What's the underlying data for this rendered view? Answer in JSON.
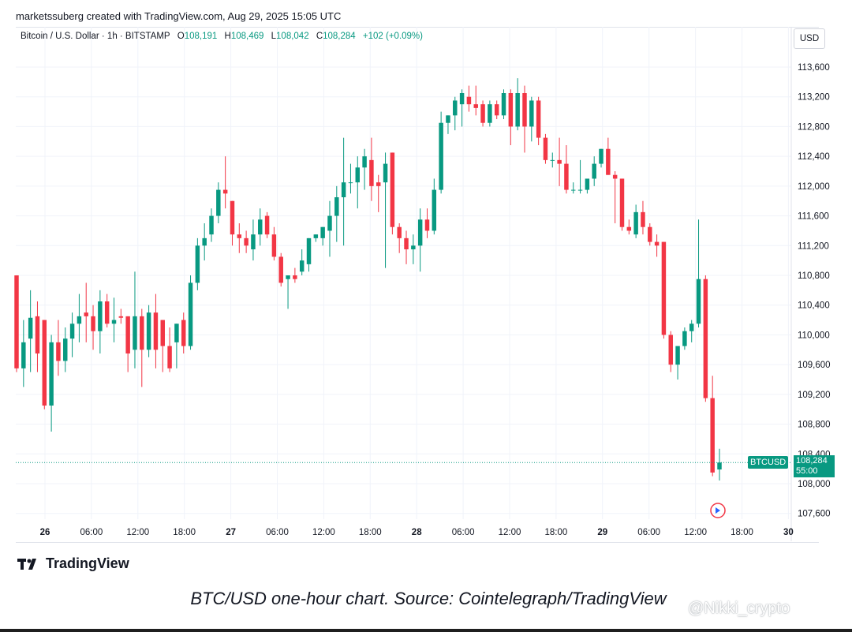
{
  "credit": "marketssuberg created with TradingView.com, Aug 29, 2025 15:05 UTC",
  "legend": {
    "name": "Bitcoin / U.S. Dollar · 1h · BITSTAMP",
    "o_label": "O",
    "o": "108,191",
    "h_label": "H",
    "h": "108,469",
    "l_label": "L",
    "l": "108,042",
    "c_label": "C",
    "c": "108,284",
    "change": "+102 (+0.09%)"
  },
  "currency": "USD",
  "price_tag": {
    "symbol": "BTCUSD",
    "price": "108,284",
    "countdown": "55:00"
  },
  "brand": "TradingView",
  "caption": "BTC/USD one-hour chart. Source: Cointelegraph/TradingView",
  "watermark": "@Nikki_crypto",
  "colors": {
    "up": "#089981",
    "down": "#f23645",
    "grid": "#f0f3fa",
    "text": "#131722"
  },
  "chart_data": {
    "type": "candlestick",
    "title": "Bitcoin / U.S. Dollar · 1h · BITSTAMP",
    "ylim": [
      107400,
      113900
    ],
    "yticks": [
      107600,
      108000,
      108400,
      108800,
      109200,
      109600,
      110000,
      110400,
      110800,
      111200,
      111600,
      112000,
      112400,
      112800,
      113200,
      113600
    ],
    "ytick_labels": [
      "107,600",
      "108,000",
      "108,400",
      "108,800",
      "109,200",
      "109,600",
      "110,000",
      "110,400",
      "110,800",
      "111,200",
      "111,600",
      "112,000",
      "112,400",
      "112,800",
      "113,200",
      "113,600"
    ],
    "xtick_labels": [
      "26",
      "06:00",
      "12:00",
      "18:00",
      "27",
      "06:00",
      "12:00",
      "18:00",
      "28",
      "06:00",
      "12:00",
      "18:00",
      "29",
      "06:00",
      "12:00",
      "18:00",
      "30"
    ],
    "xtick_bold": [
      true,
      false,
      false,
      false,
      true,
      false,
      false,
      false,
      true,
      false,
      false,
      false,
      true,
      false,
      false,
      false,
      true
    ],
    "grid": true,
    "last_price": 108284,
    "candles": [
      {
        "o": 110800,
        "h": 110800,
        "l": 109500,
        "c": 109550
      },
      {
        "o": 109550,
        "h": 110200,
        "l": 109300,
        "c": 109900
      },
      {
        "o": 109950,
        "h": 110600,
        "l": 109500,
        "c": 110230
      },
      {
        "o": 110250,
        "h": 110450,
        "l": 109500,
        "c": 109750
      },
      {
        "o": 110200,
        "h": 110200,
        "l": 109000,
        "c": 109050
      },
      {
        "o": 109050,
        "h": 110000,
        "l": 108700,
        "c": 109900
      },
      {
        "o": 109900,
        "h": 110200,
        "l": 109450,
        "c": 109650
      },
      {
        "o": 109650,
        "h": 110100,
        "l": 109500,
        "c": 109950
      },
      {
        "o": 109950,
        "h": 110300,
        "l": 109700,
        "c": 110150
      },
      {
        "o": 110150,
        "h": 110550,
        "l": 109900,
        "c": 110250
      },
      {
        "o": 110300,
        "h": 110700,
        "l": 109900,
        "c": 110250
      },
      {
        "o": 110250,
        "h": 110400,
        "l": 109800,
        "c": 110050
      },
      {
        "o": 110050,
        "h": 110600,
        "l": 109750,
        "c": 110450
      },
      {
        "o": 110450,
        "h": 110550,
        "l": 110100,
        "c": 110150
      },
      {
        "o": 110150,
        "h": 110500,
        "l": 109900,
        "c": 110200
      },
      {
        "o": 110250,
        "h": 110350,
        "l": 110150,
        "c": 110230
      },
      {
        "o": 110250,
        "h": 110250,
        "l": 109500,
        "c": 109750
      },
      {
        "o": 109800,
        "h": 110850,
        "l": 109550,
        "c": 110250
      },
      {
        "o": 110250,
        "h": 110350,
        "l": 109300,
        "c": 109800
      },
      {
        "o": 109800,
        "h": 110400,
        "l": 109700,
        "c": 110300
      },
      {
        "o": 110300,
        "h": 110550,
        "l": 109550,
        "c": 109800
      },
      {
        "o": 110200,
        "h": 110200,
        "l": 109500,
        "c": 109850
      },
      {
        "o": 109850,
        "h": 110100,
        "l": 109500,
        "c": 109550
      },
      {
        "o": 109900,
        "h": 110150,
        "l": 109550,
        "c": 110150
      },
      {
        "o": 110200,
        "h": 110300,
        "l": 109750,
        "c": 109850
      },
      {
        "o": 109850,
        "h": 110800,
        "l": 109800,
        "c": 110700
      },
      {
        "o": 110700,
        "h": 111300,
        "l": 110600,
        "c": 111200
      },
      {
        "o": 111200,
        "h": 111500,
        "l": 111000,
        "c": 111300
      },
      {
        "o": 111350,
        "h": 111700,
        "l": 111250,
        "c": 111600
      },
      {
        "o": 111600,
        "h": 112050,
        "l": 111500,
        "c": 111950
      },
      {
        "o": 111950,
        "h": 112400,
        "l": 111700,
        "c": 111900
      },
      {
        "o": 111800,
        "h": 111800,
        "l": 111200,
        "c": 111350
      },
      {
        "o": 111350,
        "h": 111500,
        "l": 111100,
        "c": 111300
      },
      {
        "o": 111300,
        "h": 111400,
        "l": 111100,
        "c": 111200
      },
      {
        "o": 111150,
        "h": 111550,
        "l": 111000,
        "c": 111350
      },
      {
        "o": 111350,
        "h": 111700,
        "l": 111200,
        "c": 111550
      },
      {
        "o": 111600,
        "h": 111650,
        "l": 111300,
        "c": 111350
      },
      {
        "o": 111350,
        "h": 111450,
        "l": 111000,
        "c": 111050
      },
      {
        "o": 111050,
        "h": 111100,
        "l": 110650,
        "c": 110700
      },
      {
        "o": 110750,
        "h": 110800,
        "l": 110350,
        "c": 110800
      },
      {
        "o": 110800,
        "h": 110900,
        "l": 110700,
        "c": 110750
      },
      {
        "o": 110850,
        "h": 111150,
        "l": 110800,
        "c": 111000
      },
      {
        "o": 110950,
        "h": 111300,
        "l": 110850,
        "c": 111300
      },
      {
        "o": 111300,
        "h": 111350,
        "l": 111250,
        "c": 111350
      },
      {
        "o": 111300,
        "h": 111450,
        "l": 111200,
        "c": 111450
      },
      {
        "o": 111400,
        "h": 111800,
        "l": 111050,
        "c": 111600
      },
      {
        "o": 111600,
        "h": 112000,
        "l": 111250,
        "c": 111850
      },
      {
        "o": 111850,
        "h": 112650,
        "l": 111200,
        "c": 112050
      },
      {
        "o": 112050,
        "h": 112300,
        "l": 111900,
        "c": 112050
      },
      {
        "o": 112050,
        "h": 112400,
        "l": 111700,
        "c": 112250
      },
      {
        "o": 112250,
        "h": 112500,
        "l": 111950,
        "c": 112400
      },
      {
        "o": 112350,
        "h": 112650,
        "l": 111800,
        "c": 112000
      },
      {
        "o": 112050,
        "h": 112150,
        "l": 111650,
        "c": 112000
      },
      {
        "o": 112050,
        "h": 112450,
        "l": 110900,
        "c": 112300
      },
      {
        "o": 112450,
        "h": 112450,
        "l": 111350,
        "c": 111450
      },
      {
        "o": 111450,
        "h": 111500,
        "l": 111100,
        "c": 111300
      },
      {
        "o": 111300,
        "h": 111400,
        "l": 110950,
        "c": 111150
      },
      {
        "o": 111150,
        "h": 111350,
        "l": 110950,
        "c": 111200
      },
      {
        "o": 111200,
        "h": 111700,
        "l": 110850,
        "c": 111550
      },
      {
        "o": 111550,
        "h": 111700,
        "l": 111300,
        "c": 111400
      },
      {
        "o": 111400,
        "h": 112100,
        "l": 111350,
        "c": 111950
      },
      {
        "o": 111950,
        "h": 113000,
        "l": 111900,
        "c": 112850
      },
      {
        "o": 112850,
        "h": 112950,
        "l": 112700,
        "c": 112950
      },
      {
        "o": 112950,
        "h": 113200,
        "l": 112750,
        "c": 113150
      },
      {
        "o": 113100,
        "h": 113300,
        "l": 112800,
        "c": 113250
      },
      {
        "o": 113200,
        "h": 113350,
        "l": 113000,
        "c": 113100
      },
      {
        "o": 113100,
        "h": 113350,
        "l": 112950,
        "c": 113050
      },
      {
        "o": 113100,
        "h": 113150,
        "l": 112800,
        "c": 112850
      },
      {
        "o": 112850,
        "h": 113150,
        "l": 112800,
        "c": 113100
      },
      {
        "o": 113100,
        "h": 113150,
        "l": 112900,
        "c": 112950
      },
      {
        "o": 112950,
        "h": 113300,
        "l": 112900,
        "c": 113250
      },
      {
        "o": 113250,
        "h": 113300,
        "l": 112550,
        "c": 112800
      },
      {
        "o": 112800,
        "h": 113450,
        "l": 112750,
        "c": 113250
      },
      {
        "o": 113250,
        "h": 113350,
        "l": 112450,
        "c": 112800
      },
      {
        "o": 112800,
        "h": 113200,
        "l": 112600,
        "c": 113150
      },
      {
        "o": 113150,
        "h": 113200,
        "l": 112550,
        "c": 112650
      },
      {
        "o": 112650,
        "h": 112700,
        "l": 112300,
        "c": 112350
      },
      {
        "o": 112350,
        "h": 112450,
        "l": 112250,
        "c": 112350
      },
      {
        "o": 112350,
        "h": 112650,
        "l": 112000,
        "c": 112300
      },
      {
        "o": 112300,
        "h": 112550,
        "l": 111900,
        "c": 111950
      },
      {
        "o": 111950,
        "h": 112050,
        "l": 111900,
        "c": 111950
      },
      {
        "o": 111950,
        "h": 112350,
        "l": 111900,
        "c": 111950
      },
      {
        "o": 111950,
        "h": 112050,
        "l": 111900,
        "c": 112100
      },
      {
        "o": 112100,
        "h": 112400,
        "l": 112000,
        "c": 112300
      },
      {
        "o": 112300,
        "h": 112500,
        "l": 112250,
        "c": 112500
      },
      {
        "o": 112500,
        "h": 112650,
        "l": 112150,
        "c": 112150
      },
      {
        "o": 112150,
        "h": 112200,
        "l": 111500,
        "c": 112100
      },
      {
        "o": 112100,
        "h": 112100,
        "l": 111400,
        "c": 111450
      },
      {
        "o": 111450,
        "h": 111550,
        "l": 111350,
        "c": 111400
      },
      {
        "o": 111350,
        "h": 111750,
        "l": 111300,
        "c": 111650
      },
      {
        "o": 111650,
        "h": 111800,
        "l": 111350,
        "c": 111450
      },
      {
        "o": 111450,
        "h": 111500,
        "l": 111200,
        "c": 111250
      },
      {
        "o": 111250,
        "h": 111350,
        "l": 111050,
        "c": 111200
      },
      {
        "o": 111250,
        "h": 111250,
        "l": 109950,
        "c": 110000
      },
      {
        "o": 110000,
        "h": 110050,
        "l": 109500,
        "c": 109600
      },
      {
        "o": 109600,
        "h": 109800,
        "l": 109400,
        "c": 109850
      },
      {
        "o": 109850,
        "h": 110100,
        "l": 109800,
        "c": 110050
      },
      {
        "o": 110050,
        "h": 110200,
        "l": 109900,
        "c": 110150
      },
      {
        "o": 110150,
        "h": 111550,
        "l": 110100,
        "c": 110750
      },
      {
        "o": 110750,
        "h": 110800,
        "l": 109100,
        "c": 109150
      },
      {
        "o": 109150,
        "h": 109450,
        "l": 108100,
        "c": 108150
      },
      {
        "o": 108191,
        "h": 108469,
        "l": 108042,
        "c": 108284
      }
    ]
  }
}
